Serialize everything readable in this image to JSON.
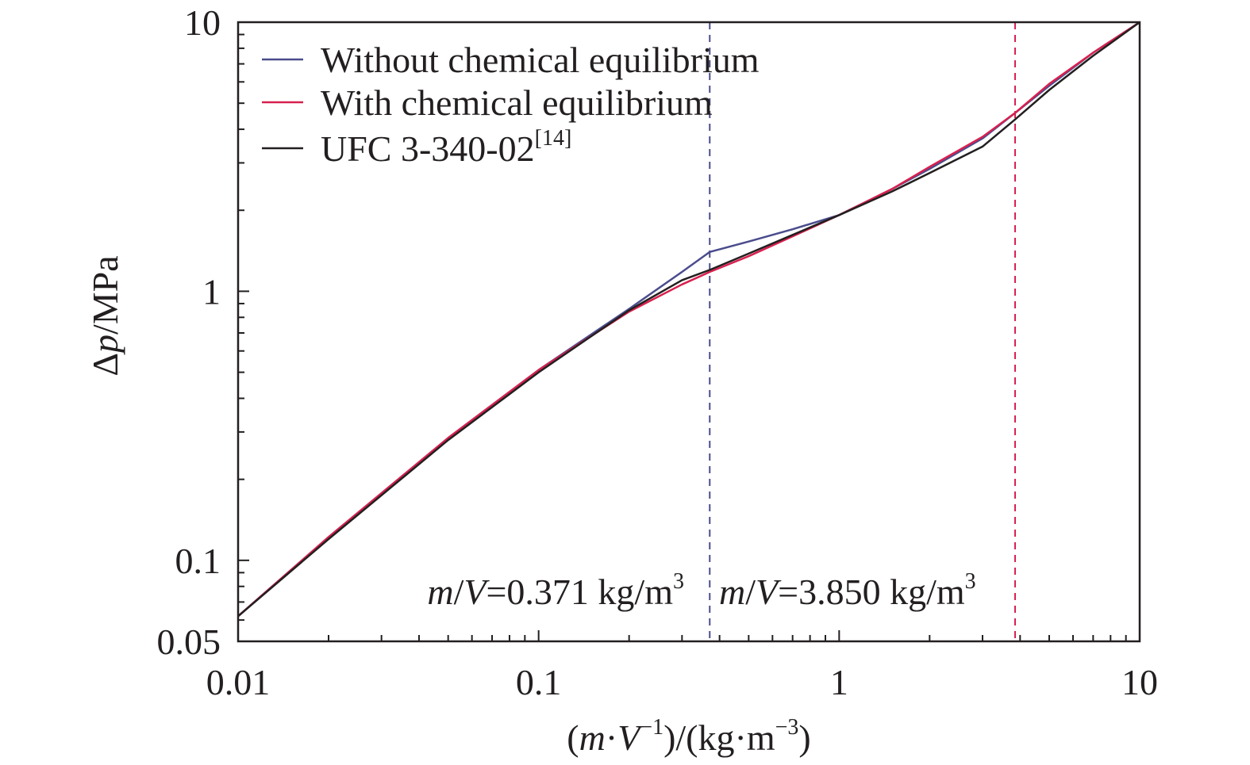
{
  "chart_data": {
    "type": "line",
    "xscale": "log",
    "yscale": "log",
    "xlim": [
      0.01,
      10
    ],
    "ylim": [
      0.05,
      10
    ],
    "xlabel": {
      "open": "(",
      "m": "m",
      "dot1": "·",
      "V": "V",
      "vexp": "−1",
      "mid": ")/(kg·m",
      "mexp": "−3",
      "close": ")"
    },
    "ylabel": {
      "delta": "Δ",
      "p": "p",
      "rest": "/MPa"
    },
    "x_ticks": [
      {
        "value": 0.01,
        "label": "0.01"
      },
      {
        "value": 0.1,
        "label": "0.1"
      },
      {
        "value": 1,
        "label": "1"
      },
      {
        "value": 10,
        "label": "10"
      }
    ],
    "y_ticks": [
      {
        "value": 0.05,
        "label": "0.05"
      },
      {
        "value": 0.1,
        "label": "0.1"
      },
      {
        "value": 1,
        "label": "1"
      },
      {
        "value": 10,
        "label": "10"
      }
    ],
    "legend_position": "top-left",
    "legend": [
      {
        "name": "Without chemical equilibrium",
        "color": "#4a4c8c"
      },
      {
        "name": "With chemical equilibrium",
        "color": "#d8204f"
      },
      {
        "name": "UFC 3-340-02",
        "ref": "[14]",
        "color": "#231f20"
      }
    ],
    "series": [
      {
        "name": "Without chemical equilibrium",
        "color": "#4a4c8c",
        "x": [
          0.01,
          0.02,
          0.05,
          0.1,
          0.2,
          0.3,
          0.371,
          0.5,
          0.7,
          1,
          1.5,
          2,
          3,
          3.85,
          5,
          7,
          10
        ],
        "y": [
          0.062,
          0.122,
          0.285,
          0.51,
          0.86,
          1.18,
          1.4,
          1.53,
          1.7,
          1.92,
          2.4,
          2.85,
          3.7,
          4.6,
          5.8,
          7.7,
          10
        ]
      },
      {
        "name": "With chemical equilibrium",
        "color": "#d8204f",
        "x": [
          0.01,
          0.02,
          0.05,
          0.1,
          0.2,
          0.3,
          0.371,
          0.5,
          0.7,
          1,
          1.5,
          2,
          3,
          3.85,
          5,
          7,
          10
        ],
        "y": [
          0.062,
          0.122,
          0.285,
          0.51,
          0.84,
          1.06,
          1.18,
          1.35,
          1.6,
          1.92,
          2.4,
          2.9,
          3.75,
          4.6,
          5.9,
          7.7,
          10
        ]
      },
      {
        "name": "UFC 3-340-02",
        "color": "#231f20",
        "x": [
          0.01,
          0.02,
          0.05,
          0.1,
          0.2,
          0.3,
          0.371,
          0.5,
          0.7,
          1,
          1.5,
          2,
          3,
          3.85,
          5,
          7,
          10
        ],
        "y": [
          0.062,
          0.12,
          0.28,
          0.5,
          0.85,
          1.1,
          1.2,
          1.38,
          1.62,
          1.92,
          2.35,
          2.75,
          3.45,
          4.35,
          5.6,
          7.5,
          10
        ]
      }
    ],
    "vlines": [
      {
        "x": 0.371,
        "color": "#4a4c8c",
        "style": "dashed"
      },
      {
        "x": 3.85,
        "color": "#d8204f",
        "style": "dashed"
      }
    ],
    "annotations": [
      {
        "m": "m",
        "slash": "/",
        "V": "V",
        "eq": "=0.371 kg/m",
        "exp": "3",
        "color": "#4a4c8c"
      },
      {
        "m": "m",
        "slash": "/",
        "V": "V",
        "eq": "=3.850 kg/m",
        "exp": "3",
        "color": "#d8204f"
      }
    ]
  }
}
